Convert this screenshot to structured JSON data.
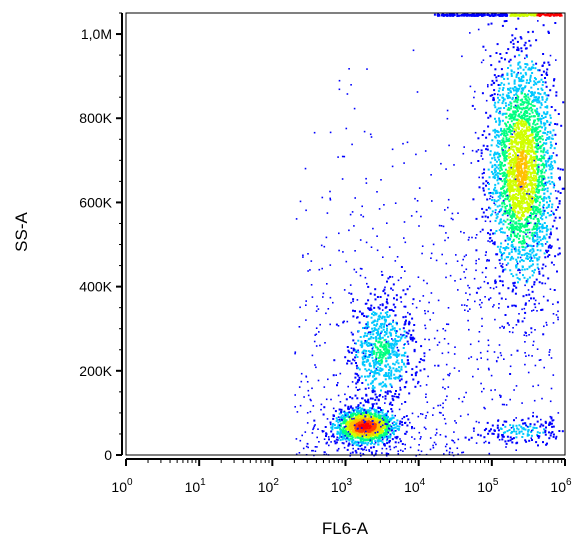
{
  "chart_data": {
    "type": "scatter",
    "subtype": "flow-cytometry density dot plot",
    "xlabel": "FL6-A",
    "ylabel": "SS-A",
    "x_scale": "log",
    "xlim": [
      1,
      1000000
    ],
    "x_ticks": [
      {
        "value": 1,
        "base": "10",
        "exp": "0"
      },
      {
        "value": 10,
        "base": "10",
        "exp": "1"
      },
      {
        "value": 100,
        "base": "10",
        "exp": "2"
      },
      {
        "value": 1000,
        "base": "10",
        "exp": "3"
      },
      {
        "value": 10000,
        "base": "10",
        "exp": "4"
      },
      {
        "value": 100000,
        "base": "10",
        "exp": "5"
      },
      {
        "value": 1000000,
        "base": "10",
        "exp": "6"
      }
    ],
    "y_scale": "linear",
    "ylim": [
      0,
      1050000
    ],
    "y_ticks": [
      {
        "value": 0,
        "label": "0"
      },
      {
        "value": 200000,
        "label": "200K"
      },
      {
        "value": 400000,
        "label": "400K"
      },
      {
        "value": 600000,
        "label": "600K"
      },
      {
        "value": 800000,
        "label": "800K"
      },
      {
        "value": 1000000,
        "label": "1,0M"
      }
    ],
    "grid": false,
    "populations": [
      {
        "x_center": 1800,
        "y_center": 70000,
        "x_spread_decades": 0.2,
        "y_spread": 20000,
        "density": "very high"
      },
      {
        "x_center": 3000,
        "y_center": 250000,
        "x_spread_decades": 0.22,
        "y_spread": 60000,
        "density": "medium"
      },
      {
        "x_center": 250000,
        "y_center": 680000,
        "x_spread_decades": 0.22,
        "y_spread": 130000,
        "density": "high"
      },
      {
        "x_center": 250000,
        "y_center": 60000,
        "x_spread_decades": 0.35,
        "y_spread": 18000,
        "density": "low"
      }
    ],
    "colormap": [
      "#0000ff",
      "#00c8ff",
      "#00ff80",
      "#d0ff00",
      "#ffc000",
      "#ff4000",
      "#ff0000"
    ]
  }
}
